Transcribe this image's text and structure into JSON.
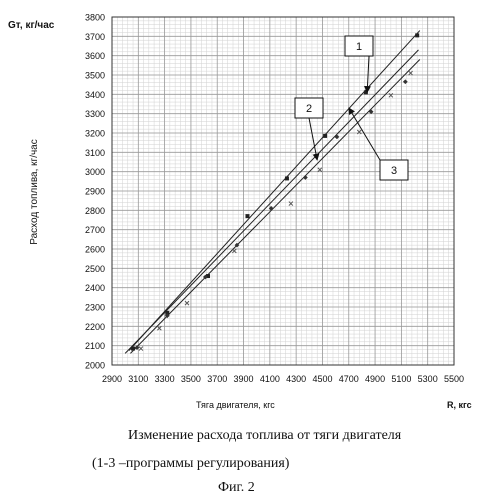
{
  "chart_data": {
    "type": "scatter",
    "title": "",
    "y_corner_label": "Gт, кг/час",
    "ylabel": "Расход топлива, кг/час",
    "xlabel": "Тяга двигателя, кгс",
    "x_corner_label": "R, кгс",
    "xlim": [
      2900,
      5500
    ],
    "ylim": [
      2000,
      3800
    ],
    "xticks": [
      2900,
      3100,
      3300,
      3500,
      3700,
      3900,
      4100,
      4300,
      4500,
      4700,
      4900,
      5100,
      5300,
      5500
    ],
    "yticks": [
      2000,
      2100,
      2200,
      2300,
      2400,
      2500,
      2600,
      2700,
      2800,
      2900,
      3000,
      3100,
      3200,
      3300,
      3400,
      3500,
      3600,
      3700,
      3800
    ],
    "grid": true,
    "series": [
      {
        "name": "1",
        "marker": "square",
        "color": "#222222",
        "points": [
          [
            3060,
            2085
          ],
          [
            3320,
            2270
          ],
          [
            3630,
            2460
          ],
          [
            3930,
            2770
          ],
          [
            4230,
            2965
          ],
          [
            4520,
            3185
          ],
          [
            4830,
            3410
          ],
          [
            5220,
            3705
          ]
        ],
        "line": [
          [
            3030,
            2075
          ],
          [
            5240,
            3730
          ]
        ]
      },
      {
        "name": "2",
        "marker": "diamond",
        "color": "#333333",
        "points": [
          [
            3090,
            2090
          ],
          [
            3320,
            2255
          ],
          [
            3610,
            2455
          ],
          [
            3850,
            2620
          ],
          [
            4110,
            2810
          ],
          [
            4370,
            2970
          ],
          [
            4610,
            3180
          ],
          [
            4870,
            3310
          ],
          [
            5130,
            3465
          ]
        ],
        "line": [
          [
            3000,
            2060
          ],
          [
            5230,
            3630
          ]
        ]
      },
      {
        "name": "3",
        "marker": "cross",
        "color": "#555555",
        "points": [
          [
            3120,
            2085
          ],
          [
            3260,
            2190
          ],
          [
            3470,
            2320
          ],
          [
            3830,
            2590
          ],
          [
            4260,
            2835
          ],
          [
            4480,
            3010
          ],
          [
            4780,
            3205
          ],
          [
            5020,
            3395
          ],
          [
            5170,
            3510
          ]
        ],
        "line": [
          [
            3040,
            2060
          ],
          [
            5240,
            3580
          ]
        ]
      }
    ],
    "callouts": [
      {
        "label": "1",
        "at": [
          4840,
          3410
        ]
      },
      {
        "label": "2",
        "at": [
          4460,
          3060
        ]
      },
      {
        "label": "3",
        "at": [
          4700,
          3330
        ]
      }
    ]
  },
  "caption": {
    "title": "Изменение расхода топлива от тяги двигателя",
    "note": "(1-3 –программы   регулирования)",
    "figure": "Фиг. 2"
  }
}
